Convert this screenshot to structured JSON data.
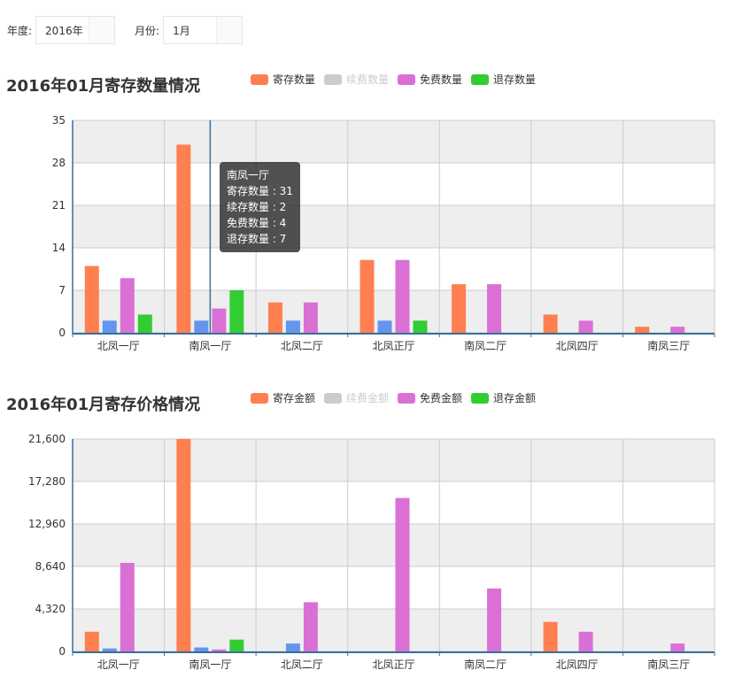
{
  "filters": {
    "year_label": "年度:",
    "year_value": "2016年",
    "month_label": "月份:",
    "month_value": "1月"
  },
  "colors": {
    "寄存": "#ff7f50",
    "续费": "#6495ed",
    "免费": "#da70d6",
    "退存": "#32cd32",
    "legend_off": "#cccccc",
    "band": "#eeeeee",
    "axis": "#3a6f9a"
  },
  "tooltip": {
    "title": "南凤一厅",
    "lines": [
      "寄存数量 : 31",
      "续存数量 : 2",
      "免费数量 : 4",
      "退存数量 : 7"
    ]
  },
  "chart_data": [
    {
      "type": "bar",
      "title": "2016年01月寄存数量情况",
      "legend": [
        {
          "name": "寄存数量",
          "color": "#ff7f50",
          "active": true
        },
        {
          "name": "续费数量",
          "color": "#cccccc",
          "active": false
        },
        {
          "name": "免费数量",
          "color": "#da70d6",
          "active": true
        },
        {
          "name": "退存数量",
          "color": "#32cd32",
          "active": true
        }
      ],
      "categories": [
        "北凤一厅",
        "南凤一厅",
        "北凤二厅",
        "北凤正厅",
        "南凤二厅",
        "北凤四厅",
        "南凤三厅"
      ],
      "series": [
        {
          "name": "寄存数量",
          "color": "#ff7f50",
          "values": [
            11,
            31,
            5,
            12,
            8,
            3,
            1
          ]
        },
        {
          "name": "续费数量",
          "color": "#6495ed",
          "values": [
            2,
            2,
            2,
            2,
            0,
            0,
            0
          ]
        },
        {
          "name": "免费数量",
          "color": "#da70d6",
          "values": [
            9,
            4,
            5,
            12,
            8,
            2,
            1
          ]
        },
        {
          "name": "退存数量",
          "color": "#32cd32",
          "values": [
            3,
            7,
            0,
            2,
            0,
            0,
            0
          ]
        }
      ],
      "ylim": [
        0,
        35
      ],
      "yticks": [
        0,
        7,
        14,
        21,
        28,
        35
      ],
      "ytick_labels": [
        "0",
        "7",
        "14",
        "21",
        "28",
        "35"
      ],
      "grid": true
    },
    {
      "type": "bar",
      "title": "2016年01月寄存价格情况",
      "legend": [
        {
          "name": "寄存金额",
          "color": "#ff7f50",
          "active": true
        },
        {
          "name": "续费金额",
          "color": "#cccccc",
          "active": false
        },
        {
          "name": "免费金额",
          "color": "#da70d6",
          "active": true
        },
        {
          "name": "退存金额",
          "color": "#32cd32",
          "active": true
        }
      ],
      "categories": [
        "北凤一厅",
        "南凤一厅",
        "北凤二厅",
        "北凤正厅",
        "南凤二厅",
        "北凤四厅",
        "南凤三厅"
      ],
      "series": [
        {
          "name": "寄存金额",
          "color": "#ff7f50",
          "values": [
            2000,
            21600,
            0,
            0,
            0,
            3000,
            0
          ]
        },
        {
          "name": "续费金额",
          "color": "#6495ed",
          "values": [
            300,
            400,
            800,
            0,
            0,
            0,
            0
          ]
        },
        {
          "name": "免费金额",
          "color": "#da70d6",
          "values": [
            9000,
            200,
            5000,
            15600,
            6400,
            2000,
            800
          ]
        },
        {
          "name": "退存金额",
          "color": "#32cd32",
          "values": [
            0,
            1200,
            0,
            0,
            0,
            0,
            0
          ]
        }
      ],
      "ylim": [
        0,
        21600
      ],
      "yticks": [
        0,
        4320,
        8640,
        12960,
        17280,
        21600
      ],
      "ytick_labels": [
        "0",
        "4,320",
        "8,640",
        "12,960",
        "17,280",
        "21,600"
      ],
      "grid": true
    }
  ]
}
